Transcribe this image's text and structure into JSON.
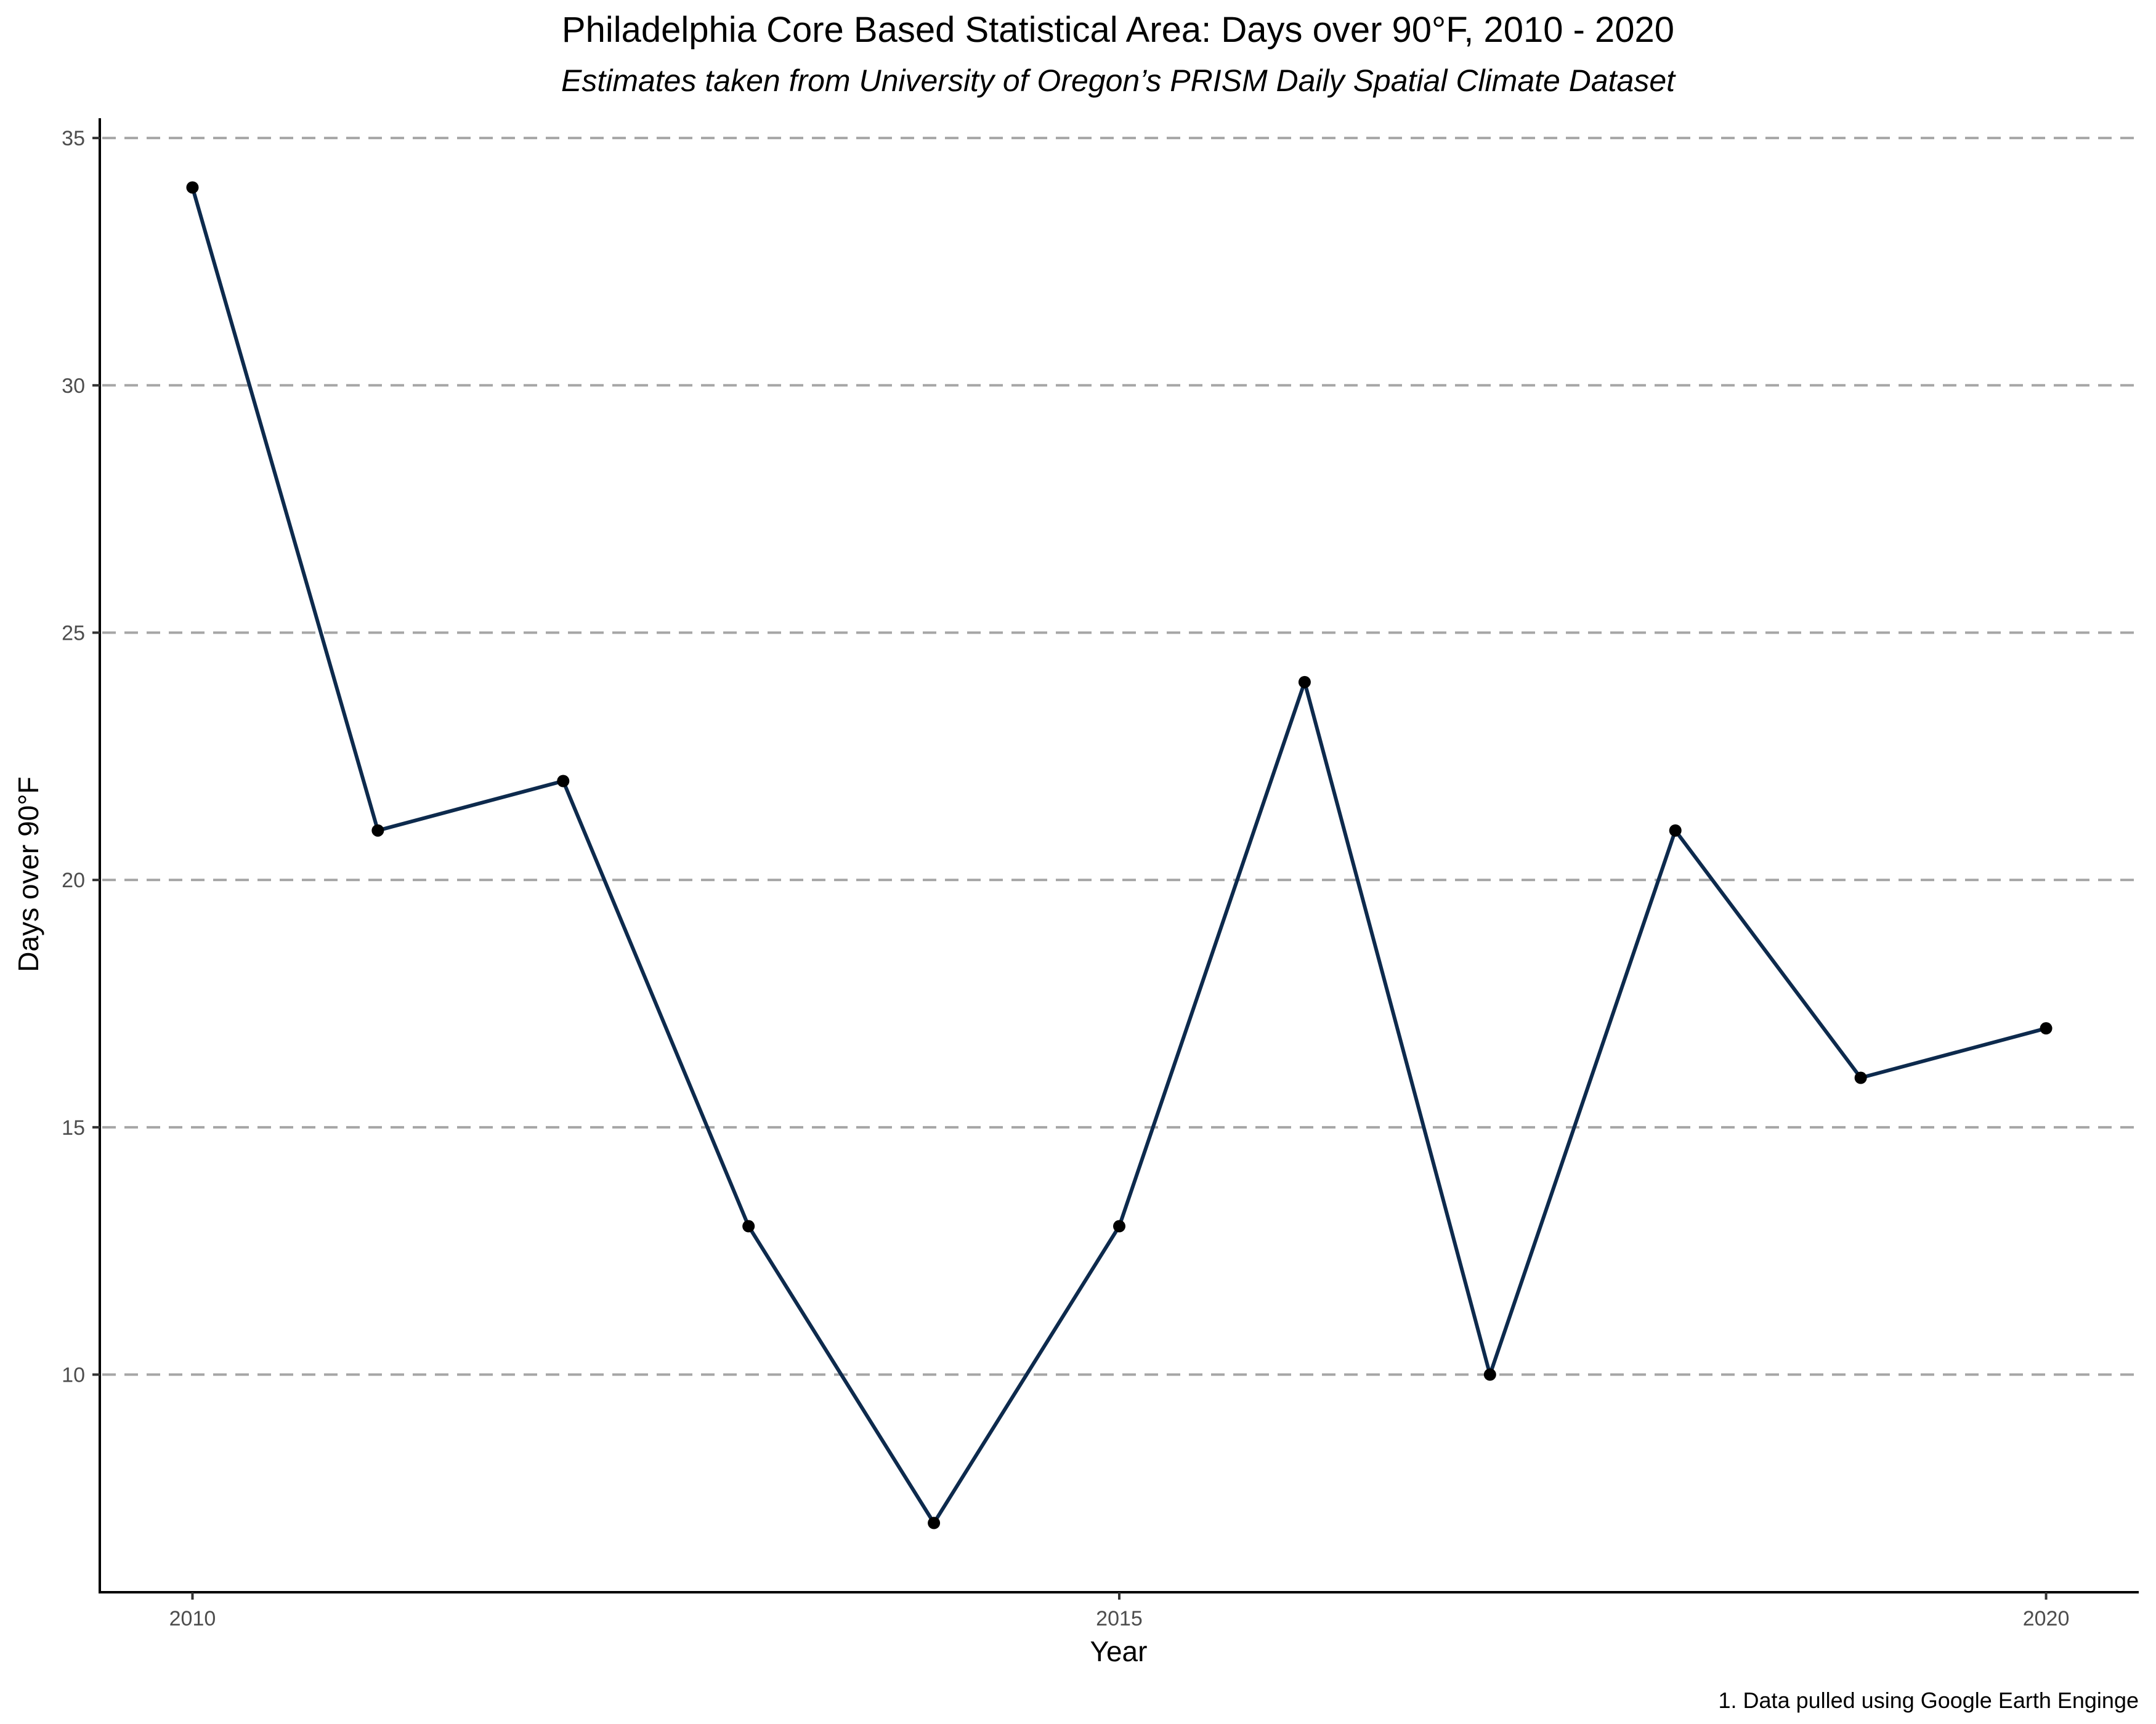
{
  "chart_data": {
    "type": "line",
    "title": "Philadelphia Core Based Statistical Area: Days over 90°F, 2010 - 2020",
    "subtitle": "Estimates taken from University of Oregon’s PRISM Daily Spatial Climate Dataset",
    "xlabel": "Year",
    "ylabel": "Days over 90°F",
    "caption": "1. Data pulled using Google Earth Enginge",
    "x": [
      2010,
      2011,
      2012,
      2013,
      2014,
      2015,
      2016,
      2017,
      2018,
      2019,
      2020
    ],
    "series": [
      {
        "values": [
          34,
          21,
          22,
          13,
          7,
          13,
          24,
          10,
          21,
          16,
          17
        ],
        "color": "#0d2a4d"
      }
    ],
    "xticks": [
      2010,
      2015,
      2020
    ],
    "yticks": [
      10,
      15,
      20,
      25,
      30,
      35
    ],
    "xlim": [
      2009.5,
      2020.5
    ],
    "ylim": [
      5.6,
      35.4
    ],
    "grid": "horizontal-dashed",
    "legend": "none"
  }
}
